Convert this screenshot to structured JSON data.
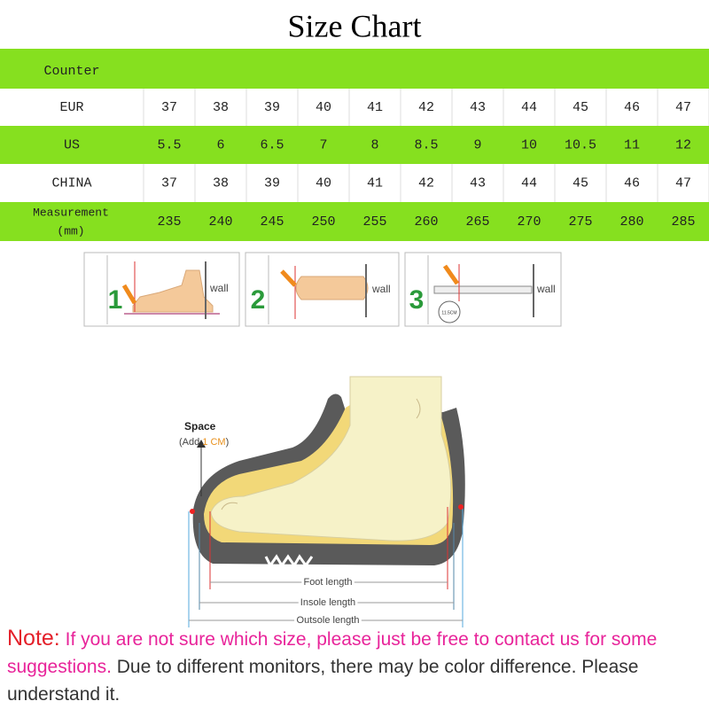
{
  "title": "Size Chart",
  "table": {
    "header": "Counter",
    "rows": [
      {
        "label": "EUR",
        "values": [
          37,
          38,
          39,
          40,
          41,
          42,
          43,
          44,
          45,
          46,
          47
        ]
      },
      {
        "label": "US",
        "values": [
          5.5,
          6,
          6.5,
          7,
          8,
          8.5,
          9,
          10,
          10.5,
          11,
          12
        ]
      },
      {
        "label": "CHINA",
        "values": [
          37,
          38,
          39,
          40,
          41,
          42,
          43,
          44,
          45,
          46,
          47
        ]
      },
      {
        "label_lines": [
          "Measurement",
          "(mm)"
        ],
        "values": [
          235,
          240,
          245,
          250,
          255,
          260,
          265,
          270,
          275,
          280,
          285
        ]
      }
    ]
  },
  "steps": [
    {
      "number": "1",
      "wall": "wall"
    },
    {
      "number": "2",
      "wall": "wall"
    },
    {
      "number": "3",
      "wall": "wall",
      "ruler": "11.5CM"
    }
  ],
  "diagram": {
    "space": "Space",
    "add_open": "(Add",
    "add_value": "1 CM",
    "add_close": ")",
    "foot_length": "Foot length",
    "insole_length": "Insole length",
    "outsole_length": "Outsole length"
  },
  "note": {
    "label": "Note:",
    "highlight": "If you are not sure which size, please just be free to contact us for some suggestions.",
    "text": "Due to different monitors, there may be color difference. Please understand it."
  }
}
